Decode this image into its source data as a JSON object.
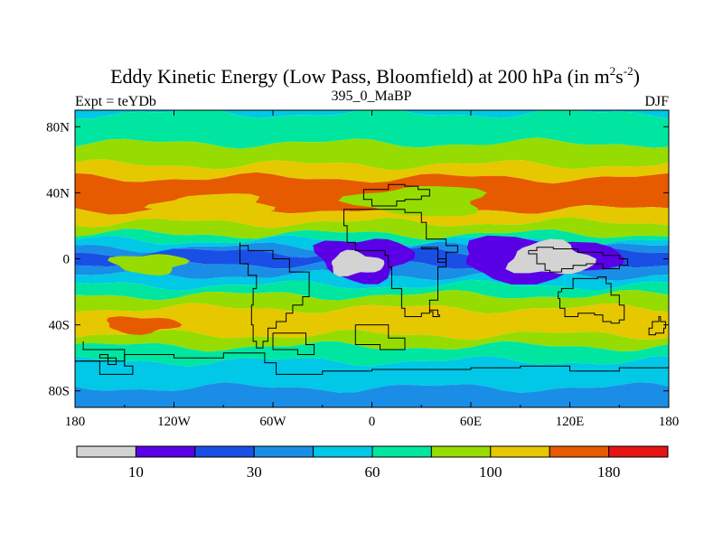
{
  "chart_data": {
    "type": "heatmap",
    "title_main": "Eddy Kinetic Energy (Low Pass, Bloomfield) at 200 hPa (in m",
    "title_sup1": "2",
    "title_mid": "s",
    "title_sup2": "-2",
    "title_close": ")",
    "left_label": "Expt = teYDb",
    "center_label": "395_0_MaBP",
    "right_label": "DJF",
    "xlabel": "",
    "ylabel": "",
    "xlim": [
      -180,
      180
    ],
    "ylim": [
      -90,
      90
    ],
    "x_ticks": [
      {
        "value": -180,
        "label": "180"
      },
      {
        "value": -120,
        "label": "120W"
      },
      {
        "value": -60,
        "label": "60W"
      },
      {
        "value": 0,
        "label": "0"
      },
      {
        "value": 60,
        "label": "60E"
      },
      {
        "value": 120,
        "label": "120E"
      },
      {
        "value": 180,
        "label": "180"
      }
    ],
    "y_ticks": [
      {
        "value": 80,
        "label": "80N"
      },
      {
        "value": 40,
        "label": "40N"
      },
      {
        "value": 0,
        "label": "0"
      },
      {
        "value": -40,
        "label": "40S"
      },
      {
        "value": -80,
        "label": "80S"
      }
    ],
    "colorbar": {
      "colors": [
        "#d3d3d3",
        "#5a00e6",
        "#1a4fe6",
        "#1a8ee6",
        "#00c8e6",
        "#00e6a0",
        "#96dc00",
        "#e6c800",
        "#e65a00",
        "#e61414"
      ],
      "labels": [
        {
          "value": 10,
          "after_box": 1
        },
        {
          "value": 30,
          "after_box": 3
        },
        {
          "value": 60,
          "after_box": 5
        },
        {
          "value": 100,
          "after_box": 7
        },
        {
          "value": 180,
          "after_box": 9
        }
      ]
    },
    "zonal_bands": [
      {
        "lat_top": 90,
        "lat_bottom": 88,
        "level": 4
      },
      {
        "lat_top": 88,
        "lat_bottom": 70,
        "level": 5
      },
      {
        "lat_top": 70,
        "lat_bottom": 57,
        "level": 6
      },
      {
        "lat_top": 57,
        "lat_bottom": 49,
        "level": 7
      },
      {
        "lat_top": 49,
        "lat_bottom": 30,
        "level": 8
      },
      {
        "lat_top": 30,
        "lat_bottom": 22,
        "level": 7
      },
      {
        "lat_top": 22,
        "lat_bottom": 15,
        "level": 6
      },
      {
        "lat_top": 15,
        "lat_bottom": 11,
        "level": 5
      },
      {
        "lat_top": 11,
        "lat_bottom": 7,
        "level": 4
      },
      {
        "lat_top": 7,
        "lat_bottom": 4,
        "level": 3
      },
      {
        "lat_top": 4,
        "lat_bottom": -3,
        "level": 2
      },
      {
        "lat_top": -3,
        "lat_bottom": -10,
        "level": 3
      },
      {
        "lat_top": -10,
        "lat_bottom": -16,
        "level": 4
      },
      {
        "lat_top": -16,
        "lat_bottom": -22,
        "level": 5
      },
      {
        "lat_top": -22,
        "lat_bottom": -30,
        "level": 6
      },
      {
        "lat_top": -30,
        "lat_bottom": -46,
        "level": 7
      },
      {
        "lat_top": -46,
        "lat_bottom": -53,
        "level": 6
      },
      {
        "lat_top": -53,
        "lat_bottom": -62,
        "level": 5
      },
      {
        "lat_top": -62,
        "lat_bottom": -78,
        "level": 4
      },
      {
        "lat_top": -78,
        "lat_bottom": -90,
        "level": 3
      }
    ],
    "regional_features": [
      {
        "lon": -5,
        "lat": 0,
        "rlon": 28,
        "rlat": 13,
        "level": 1
      },
      {
        "lon": 100,
        "lat": 0,
        "rlon": 48,
        "rlat": 13,
        "level": 1
      },
      {
        "lon": -10,
        "lat": -3,
        "rlon": 16,
        "rlat": 7,
        "level": 0
      },
      {
        "lon": 108,
        "lat": 0,
        "rlon": 25,
        "rlat": 10,
        "level": 0
      },
      {
        "lon": -95,
        "lat": 33,
        "rlon": 35,
        "rlat": 6,
        "level": 7
      },
      {
        "lon": 30,
        "lat": 35,
        "rlon": 40,
        "rlat": 9,
        "level": 6
      },
      {
        "lon": -135,
        "lat": -3,
        "rlon": 22,
        "rlat": 6,
        "level": 6
      },
      {
        "lon": -140,
        "lat": -40,
        "rlon": 22,
        "rlat": 5,
        "level": 8
      }
    ],
    "coastlines": [
      [
        [
          -5,
          42
        ],
        [
          10,
          42
        ],
        [
          10,
          45
        ],
        [
          20,
          45
        ],
        [
          20,
          44
        ],
        [
          28,
          44
        ],
        [
          28,
          42
        ],
        [
          35,
          42
        ],
        [
          35,
          38
        ],
        [
          30,
          38
        ],
        [
          30,
          36
        ],
        [
          20,
          36
        ],
        [
          15,
          35
        ],
        [
          10,
          32
        ],
        [
          0,
          32
        ],
        [
          -5,
          36
        ],
        [
          -5,
          42
        ]
      ],
      [
        [
          -15,
          30
        ],
        [
          -10,
          30
        ],
        [
          20,
          30
        ],
        [
          30,
          28
        ],
        [
          33,
          22
        ],
        [
          45,
          12
        ],
        [
          52,
          8
        ],
        [
          45,
          4
        ],
        [
          40,
          -5
        ],
        [
          40,
          -15
        ],
        [
          35,
          -25
        ],
        [
          30,
          -33
        ],
        [
          20,
          -35
        ],
        [
          18,
          -30
        ],
        [
          12,
          -18
        ],
        [
          10,
          -5
        ],
        [
          8,
          2
        ],
        [
          0,
          5
        ],
        [
          -10,
          5
        ],
        [
          -15,
          10
        ],
        [
          -17,
          20
        ],
        [
          -15,
          30
        ]
      ],
      [
        [
          -80,
          10
        ],
        [
          -75,
          8
        ],
        [
          -60,
          5
        ],
        [
          -50,
          0
        ],
        [
          -38,
          -8
        ],
        [
          -38,
          -15
        ],
        [
          -42,
          -23
        ],
        [
          -48,
          -28
        ],
        [
          -52,
          -33
        ],
        [
          -58,
          -38
        ],
        [
          -63,
          -42
        ],
        [
          -66,
          -50
        ],
        [
          -70,
          -54
        ],
        [
          -72,
          -50
        ],
        [
          -73,
          -40
        ],
        [
          -72,
          -28
        ],
        [
          -70,
          -18
        ],
        [
          -75,
          -10
        ],
        [
          -80,
          -3
        ],
        [
          -80,
          10
        ]
      ],
      [
        [
          115,
          -20
        ],
        [
          122,
          -18
        ],
        [
          130,
          -12
        ],
        [
          137,
          -12
        ],
        [
          142,
          -11
        ],
        [
          145,
          -15
        ],
        [
          150,
          -22
        ],
        [
          153,
          -28
        ],
        [
          150,
          -37
        ],
        [
          145,
          -39
        ],
        [
          140,
          -38
        ],
        [
          135,
          -34
        ],
        [
          125,
          -33
        ],
        [
          117,
          -35
        ],
        [
          114,
          -30
        ],
        [
          113,
          -24
        ],
        [
          115,
          -20
        ]
      ],
      [
        [
          95,
          5
        ],
        [
          100,
          3
        ],
        [
          105,
          -3
        ],
        [
          108,
          -7
        ],
        [
          115,
          -8
        ],
        [
          122,
          -6
        ],
        [
          130,
          -4
        ],
        [
          140,
          -3
        ],
        [
          150,
          -6
        ],
        [
          155,
          -4
        ],
        [
          150,
          0
        ],
        [
          140,
          2
        ],
        [
          125,
          4
        ],
        [
          110,
          6
        ],
        [
          100,
          7
        ],
        [
          95,
          5
        ]
      ],
      [
        [
          175,
          -35
        ],
        [
          178,
          -38
        ],
        [
          177,
          -42
        ],
        [
          172,
          -45
        ],
        [
          168,
          -46
        ],
        [
          170,
          -42
        ],
        [
          174,
          -38
        ],
        [
          175,
          -35
        ]
      ],
      [
        [
          -180,
          -62
        ],
        [
          -150,
          -62
        ],
        [
          -120,
          -58
        ],
        [
          -90,
          -60
        ],
        [
          -65,
          -57
        ],
        [
          -58,
          -63
        ],
        [
          -30,
          -70
        ],
        [
          0,
          -68
        ],
        [
          30,
          -67
        ],
        [
          60,
          -67
        ],
        [
          90,
          -66
        ],
        [
          120,
          -65
        ],
        [
          150,
          -68
        ],
        [
          180,
          -66
        ]
      ],
      [
        [
          -60,
          -45
        ],
        [
          -40,
          -45
        ],
        [
          -35,
          -52
        ],
        [
          -45,
          -58
        ],
        [
          -60,
          -55
        ],
        [
          -60,
          -45
        ]
      ],
      [
        [
          -10,
          -40
        ],
        [
          10,
          -40
        ],
        [
          20,
          -48
        ],
        [
          5,
          -55
        ],
        [
          -10,
          -52
        ],
        [
          -10,
          -40
        ]
      ],
      [
        [
          -175,
          -50
        ],
        [
          -150,
          -55
        ],
        [
          -145,
          -65
        ],
        [
          -165,
          -70
        ],
        [
          -180,
          -62
        ]
      ],
      [
        [
          35,
          -32
        ],
        [
          40,
          -31
        ],
        [
          41,
          -34
        ],
        [
          37,
          -35
        ],
        [
          35,
          -32
        ]
      ],
      [
        [
          30,
          6
        ],
        [
          40,
          7
        ],
        [
          45,
          0
        ],
        [
          40,
          -2
        ],
        [
          30,
          6
        ]
      ],
      [
        [
          -165,
          -58
        ],
        [
          -155,
          -60
        ],
        [
          -160,
          -64
        ],
        [
          -165,
          -58
        ]
      ]
    ]
  }
}
